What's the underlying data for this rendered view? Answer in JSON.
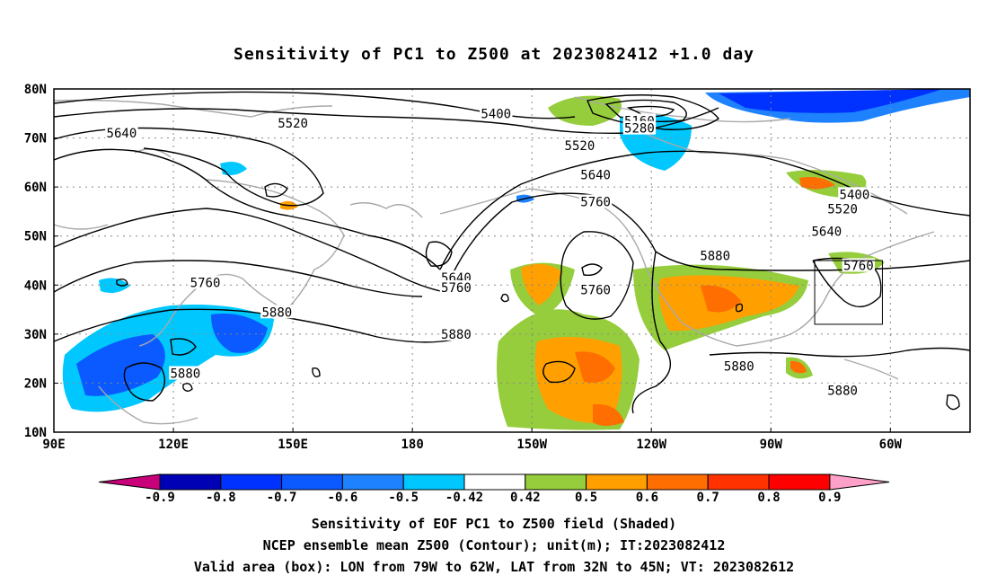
{
  "title": "Sensitivity of PC1 to Z500 at 2023082412 +1.0 day",
  "map": {
    "lat_ticks": [
      "80N",
      "70N",
      "60N",
      "50N",
      "40N",
      "30N",
      "20N",
      "10N"
    ],
    "lon_ticks": [
      {
        "lon": 90,
        "label": "90E"
      },
      {
        "lon": 120,
        "label": "120E"
      },
      {
        "lon": 150,
        "label": "150E"
      },
      {
        "lon": 180,
        "label": "180"
      },
      {
        "lon": 210,
        "label": "150W"
      },
      {
        "lon": 240,
        "label": "120W"
      },
      {
        "lon": 270,
        "label": "90W"
      },
      {
        "lon": 300,
        "label": "60W"
      }
    ],
    "lon_range": [
      90,
      320
    ],
    "lat_range": [
      10,
      80
    ],
    "grid": true,
    "contour_labels": [
      {
        "text": "5640",
        "lon": 107,
        "lat": 71
      },
      {
        "text": "5520",
        "lon": 150,
        "lat": 73
      },
      {
        "text": "5400",
        "lon": 201,
        "lat": 75
      },
      {
        "text": "5160",
        "lon": 237,
        "lat": 73.5
      },
      {
        "text": "5280",
        "lon": 237,
        "lat": 72
      },
      {
        "text": "5520",
        "lon": 222,
        "lat": 68.5
      },
      {
        "text": "5640",
        "lon": 226,
        "lat": 62.5
      },
      {
        "text": "5760",
        "lon": 226,
        "lat": 57
      },
      {
        "text": "5400",
        "lon": 291,
        "lat": 58.5
      },
      {
        "text": "5520",
        "lon": 288,
        "lat": 55.5
      },
      {
        "text": "5640",
        "lon": 284,
        "lat": 51
      },
      {
        "text": "5760",
        "lon": 292,
        "lat": 44
      },
      {
        "text": "5880",
        "lon": 256,
        "lat": 46
      },
      {
        "text": "5640",
        "lon": 191,
        "lat": 41.5
      },
      {
        "text": "5760",
        "lon": 191,
        "lat": 39.5
      },
      {
        "text": "5760",
        "lon": 128,
        "lat": 40.5
      },
      {
        "text": "5760",
        "lon": 226,
        "lat": 39
      },
      {
        "text": "5880",
        "lon": 146,
        "lat": 34.5
      },
      {
        "text": "5880",
        "lon": 191,
        "lat": 30
      },
      {
        "text": "5880",
        "lon": 262,
        "lat": 23.5
      },
      {
        "text": "5880",
        "lon": 123,
        "lat": 22
      },
      {
        "text": "5880",
        "lon": 288,
        "lat": 18.5
      }
    ],
    "valid_box": {
      "lon_min": 281,
      "lon_max": 298,
      "lat_min": 32,
      "lat_max": 45
    }
  },
  "colorbar": {
    "labels": [
      "-0.9",
      "-0.8",
      "-0.7",
      "-0.6",
      "-0.5",
      "-0.42",
      "0.42",
      "0.5",
      "0.6",
      "0.7",
      "0.8",
      "0.9"
    ],
    "colors": [
      "#0000b4",
      "#0032ff",
      "#0a5aff",
      "#1e82ff",
      "#00c8ff",
      "#ffffff",
      "#96cd3c",
      "#ffa000",
      "#ff6e00",
      "#ff3200",
      "#ff0000"
    ],
    "low_extend_color": "#c8007a",
    "high_extend_color": "#ffa0c8"
  },
  "caption": {
    "line1": "Sensitivity of EOF PC1 to Z500 field (Shaded)",
    "line2": "NCEP ensemble mean Z500 (Contour); unit(m); IT:2023082412",
    "line3": "Valid area (box): LON from 79W to 62W, LAT from 32N to 45N; VT: 2023082612"
  }
}
